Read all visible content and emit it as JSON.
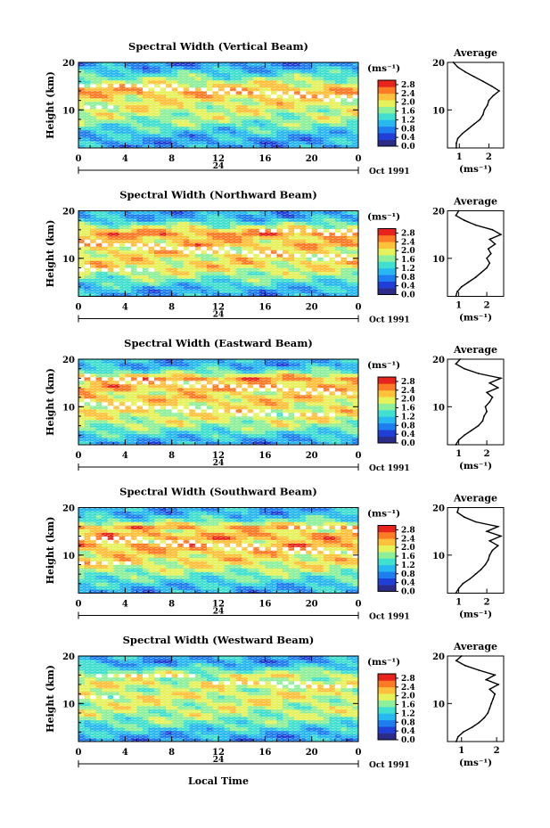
{
  "chart_data": [
    {
      "type": "heatmap",
      "title": "Spectral Width (Vertical Beam)",
      "ylabel": "Height (km)",
      "xlabel": "",
      "ylim": [
        2,
        20
      ],
      "xlim": [
        0,
        24
      ],
      "x_ticks": [
        "0",
        "4",
        "8",
        "12",
        "16",
        "20",
        "0"
      ],
      "y_ticks": [
        "10",
        "20"
      ],
      "day_label": "24",
      "month_label": "Oct 1991",
      "colorbar": {
        "unit": "(ms⁻¹)",
        "ticks": [
          "0.0",
          "0.4",
          "0.8",
          "1.2",
          "1.6",
          "2.0",
          "2.4",
          "2.8"
        ],
        "range": [
          0,
          3.0
        ]
      },
      "profile": {
        "type": "line",
        "title": "Average",
        "xlabel": "(ms⁻¹)",
        "x_ticks": [
          "1",
          "2"
        ],
        "y_ticks": [
          "10",
          "20"
        ],
        "xlim": [
          0.6,
          2.5
        ],
        "ylim": [
          2,
          20
        ],
        "height_km": [
          2,
          3,
          4,
          5,
          6,
          7,
          8,
          9,
          10,
          11,
          12,
          13,
          14,
          15,
          16,
          17,
          18,
          19,
          20
        ],
        "value_ms": [
          0.9,
          0.9,
          0.95,
          1.1,
          1.3,
          1.5,
          1.7,
          1.8,
          1.85,
          1.95,
          2.0,
          2.15,
          2.35,
          2.1,
          1.8,
          1.5,
          1.2,
          0.95,
          0.8
        ]
      }
    },
    {
      "type": "heatmap",
      "title": "Spectral Width (Northward Beam)",
      "ylabel": "Height (km)",
      "xlabel": "",
      "ylim": [
        2,
        20
      ],
      "xlim": [
        0,
        24
      ],
      "x_ticks": [
        "0",
        "4",
        "8",
        "12",
        "16",
        "20",
        "0"
      ],
      "y_ticks": [
        "10",
        "20"
      ],
      "day_label": "24",
      "month_label": "Oct 1991",
      "colorbar": {
        "unit": "(ms⁻¹)",
        "ticks": [
          "0.0",
          "0.4",
          "0.8",
          "1.2",
          "1.6",
          "2.0",
          "2.4",
          "2.8"
        ],
        "range": [
          0,
          3.0
        ]
      },
      "profile": {
        "type": "line",
        "title": "Average",
        "xlabel": "(ms⁻¹)",
        "x_ticks": [
          "1",
          "2"
        ],
        "y_ticks": [
          "10",
          "20"
        ],
        "xlim": [
          0.6,
          2.6
        ],
        "ylim": [
          2,
          20
        ],
        "height_km": [
          2,
          3,
          4,
          5,
          6,
          7,
          8,
          9,
          10,
          11,
          12,
          13,
          14,
          15,
          16,
          17,
          18,
          19,
          20
        ],
        "value_ms": [
          0.9,
          0.95,
          1.1,
          1.35,
          1.6,
          1.8,
          2.0,
          2.1,
          2.0,
          2.15,
          2.05,
          2.3,
          2.1,
          2.5,
          2.2,
          1.6,
          1.2,
          0.9,
          1.0
        ]
      }
    },
    {
      "type": "heatmap",
      "title": "Spectral Width (Eastward Beam)",
      "ylabel": "Height (km)",
      "xlabel": "",
      "ylim": [
        2,
        20
      ],
      "xlim": [
        0,
        24
      ],
      "x_ticks": [
        "0",
        "4",
        "8",
        "12",
        "16",
        "20",
        "0"
      ],
      "y_ticks": [
        "10",
        "20"
      ],
      "day_label": "24",
      "month_label": "Oct 1991",
      "colorbar": {
        "unit": "(ms⁻¹)",
        "ticks": [
          "0.0",
          "0.4",
          "0.8",
          "1.2",
          "1.6",
          "2.0",
          "2.4",
          "2.8"
        ],
        "range": [
          0,
          3.0
        ]
      },
      "profile": {
        "type": "line",
        "title": "Average",
        "xlabel": "(ms⁻¹)",
        "x_ticks": [
          "1",
          "2"
        ],
        "y_ticks": [
          "10",
          "20"
        ],
        "xlim": [
          0.6,
          2.6
        ],
        "ylim": [
          2,
          20
        ],
        "height_km": [
          2,
          3,
          4,
          5,
          6,
          7,
          8,
          9,
          10,
          11,
          12,
          13,
          14,
          15,
          16,
          17,
          18,
          19,
          20
        ],
        "value_ms": [
          0.9,
          1.0,
          1.2,
          1.45,
          1.7,
          1.85,
          1.9,
          2.0,
          1.95,
          2.1,
          2.2,
          2.0,
          2.4,
          2.1,
          2.5,
          1.7,
          1.2,
          0.9,
          1.05
        ]
      }
    },
    {
      "type": "heatmap",
      "title": "Spectral Width (Southward Beam)",
      "ylabel": "Height (km)",
      "xlabel": "",
      "ylim": [
        2,
        20
      ],
      "xlim": [
        0,
        24
      ],
      "x_ticks": [
        "0",
        "4",
        "8",
        "12",
        "16",
        "20",
        "0"
      ],
      "y_ticks": [
        "10",
        "20"
      ],
      "day_label": "24",
      "month_label": "Oct 1991",
      "colorbar": {
        "unit": "(ms⁻¹)",
        "ticks": [
          "0.0",
          "0.4",
          "0.8",
          "1.2",
          "1.6",
          "2.0",
          "2.4",
          "2.8"
        ],
        "range": [
          0,
          3.0
        ]
      },
      "profile": {
        "type": "line",
        "title": "Average",
        "xlabel": "(ms⁻¹)",
        "x_ticks": [
          "1",
          "2"
        ],
        "y_ticks": [
          "10",
          "20"
        ],
        "xlim": [
          0.6,
          2.6
        ],
        "ylim": [
          2,
          20
        ],
        "height_km": [
          2,
          3,
          4,
          5,
          6,
          7,
          8,
          9,
          10,
          11,
          12,
          13,
          14,
          15,
          16,
          17,
          18,
          19,
          20
        ],
        "value_ms": [
          0.9,
          1.0,
          1.15,
          1.4,
          1.6,
          1.8,
          1.95,
          2.05,
          2.1,
          2.2,
          2.4,
          2.1,
          2.5,
          2.0,
          2.4,
          1.6,
          1.2,
          0.95,
          1.0
        ]
      }
    },
    {
      "type": "heatmap",
      "title": "Spectral Width (Westward Beam)",
      "ylabel": "Height (km)",
      "xlabel": "Local Time",
      "ylim": [
        2,
        20
      ],
      "xlim": [
        0,
        24
      ],
      "x_ticks": [
        "0",
        "4",
        "8",
        "12",
        "16",
        "20",
        "0"
      ],
      "y_ticks": [
        "10",
        "20"
      ],
      "day_label": "24",
      "month_label": "Oct 1991",
      "colorbar": {
        "unit": "(ms⁻¹)",
        "ticks": [
          "0.0",
          "0.4",
          "0.8",
          "1.2",
          "1.6",
          "2.0",
          "2.4",
          "2.8"
        ],
        "range": [
          0,
          3.0
        ]
      },
      "profile": {
        "type": "line",
        "title": "Average",
        "xlabel": "(ms⁻¹)",
        "x_ticks": [
          "1",
          "2"
        ],
        "y_ticks": [
          "10",
          "20"
        ],
        "xlim": [
          0.6,
          2.2
        ],
        "ylim": [
          2,
          20
        ],
        "height_km": [
          2,
          3,
          4,
          5,
          6,
          7,
          8,
          9,
          10,
          11,
          12,
          13,
          14,
          15,
          16,
          17,
          18,
          19,
          20
        ],
        "value_ms": [
          0.85,
          0.9,
          1.05,
          1.3,
          1.5,
          1.65,
          1.75,
          1.8,
          1.85,
          1.9,
          1.95,
          1.8,
          2.05,
          1.7,
          1.95,
          1.5,
          1.1,
          0.85,
          1.0
        ]
      }
    }
  ],
  "colors": {
    "scale": [
      "#2b2b8a",
      "#1f3fd6",
      "#1e7ef0",
      "#28b8f0",
      "#3fe0d0",
      "#8ef09a",
      "#e6f25a",
      "#ffc03a",
      "#ff7a24",
      "#e8231c"
    ],
    "missing": "#ffffff"
  }
}
